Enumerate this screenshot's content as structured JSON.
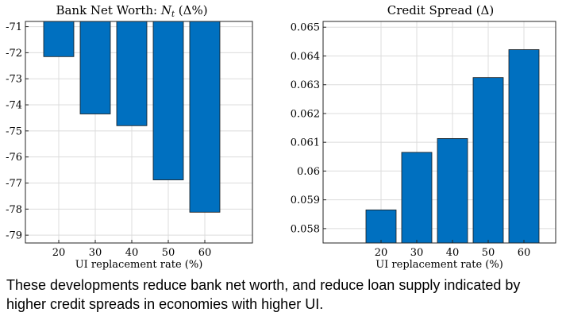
{
  "chart_data": [
    {
      "type": "bar",
      "title": "Bank Net Worth: N_t (Δ%)",
      "title_parts": {
        "text": "Bank Net Worth: ",
        "var": "N",
        "sub": "t",
        "suffix": " (Δ%)"
      },
      "xlabel": "UI replacement rate (%)",
      "ylabel": "",
      "categories": [
        "20",
        "30",
        "40",
        "50",
        "60"
      ],
      "values": [
        -72.15,
        -74.35,
        -74.8,
        -76.88,
        -78.12
      ],
      "ylim": [
        -79.3,
        -70.8
      ],
      "yticks": [
        -71,
        -72,
        -73,
        -74,
        -75,
        -76,
        -77,
        -78,
        -79
      ],
      "ytick_labels": [
        "-71",
        "-72",
        "-73",
        "-74",
        "-75",
        "-76",
        "-77",
        "-78",
        "-79"
      ],
      "bar_color": "#0070c0",
      "grid": true
    },
    {
      "type": "bar",
      "title": "Credit Spread (Δ)",
      "xlabel": "UI replacement rate (%)",
      "ylabel": "",
      "categories": [
        "20",
        "30",
        "40",
        "50",
        "60"
      ],
      "values": [
        0.05865,
        0.06065,
        0.06113,
        0.06325,
        0.06422
      ],
      "ylim": [
        0.0575,
        0.0652
      ],
      "yticks": [
        0.058,
        0.059,
        0.06,
        0.061,
        0.062,
        0.063,
        0.064,
        0.065
      ],
      "ytick_labels": [
        "0.058",
        "0.059",
        "0.06",
        "0.061",
        "0.062",
        "0.063",
        "0.064",
        "0.065"
      ],
      "bar_color": "#0070c0",
      "grid": true
    }
  ],
  "caption": "These developments reduce bank net worth, and reduce loan supply indicated by higher credit spreads in economies with higher UI."
}
